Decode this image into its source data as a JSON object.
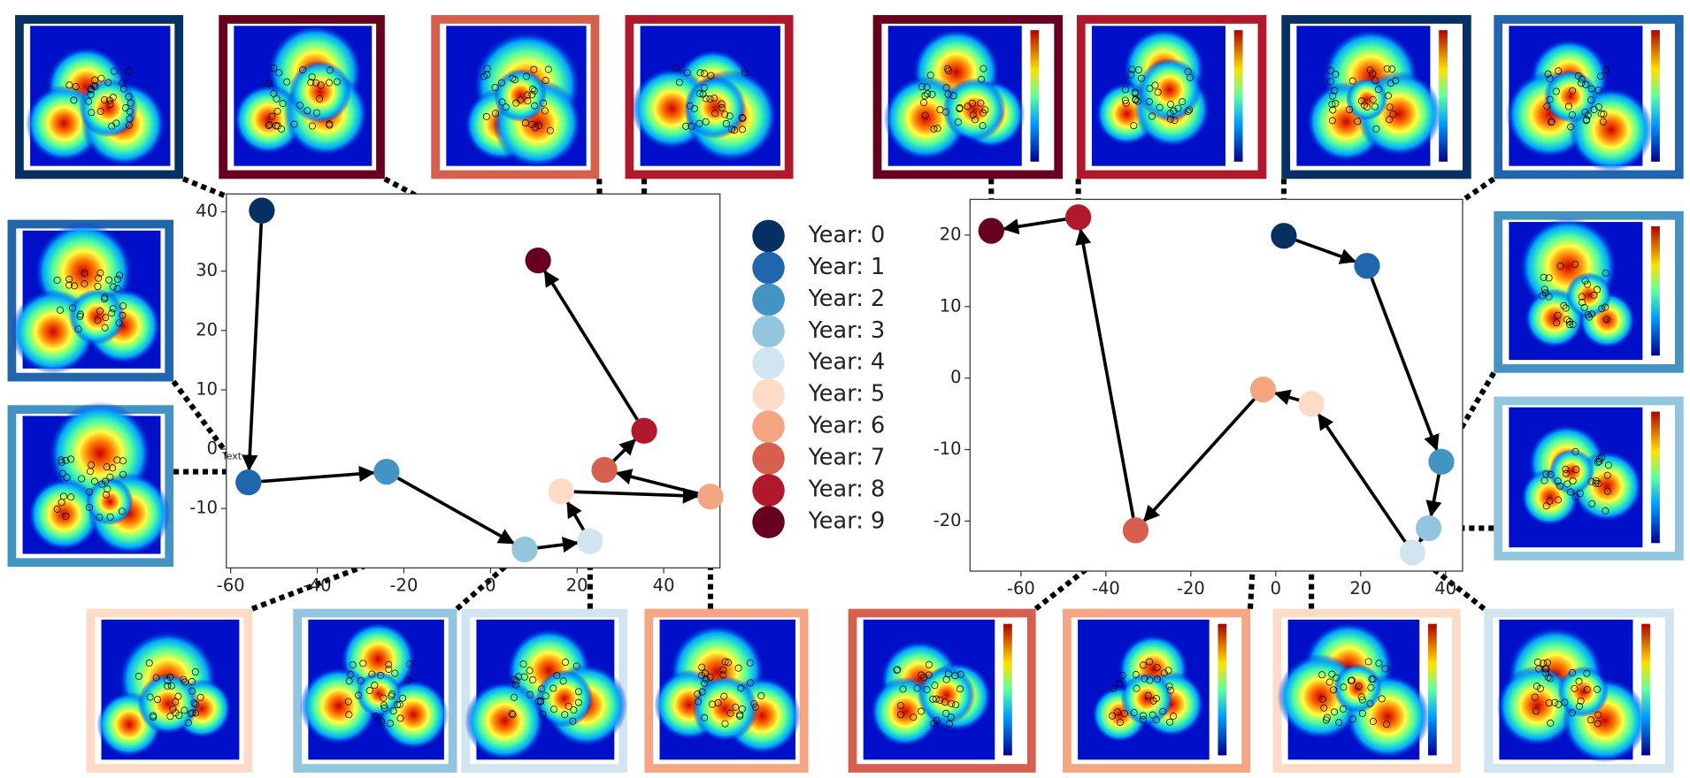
{
  "chart_data": [
    {
      "type": "scatter",
      "categories": [
        "Year: 0",
        "Year: 1",
        "Year: 2",
        "Year: 3",
        "Year: 4",
        "Year: 5",
        "Year: 6",
        "Year: 7",
        "Year: 8",
        "Year: 9"
      ],
      "colors": [
        "#053061",
        "#2166ac",
        "#4393c3",
        "#92c5de",
        "#d1e5f0",
        "#fddbc7",
        "#f4a582",
        "#d6604d",
        "#b2182b",
        "#67001f"
      ],
      "x": [
        -52.8,
        -55.9,
        -24,
        7.9,
        23,
        16.3,
        50.8,
        26.3,
        35.5,
        11
      ],
      "values": [
        40.2,
        -5.6,
        -3.8,
        -16.9,
        -15.5,
        -7.1,
        -8,
        -3.5,
        3.1,
        31.8
      ],
      "xlim": [
        -61,
        53
      ],
      "ylim": [
        -20,
        43
      ],
      "xticks": [
        -60,
        -40,
        -20,
        0,
        20,
        40
      ],
      "yticks": [
        -10,
        0,
        10,
        20,
        30,
        40
      ],
      "annotations": [
        "Text"
      ]
    },
    {
      "type": "scatter",
      "colors": [
        "#053061",
        "#2166ac",
        "#4393c3",
        "#92c5de",
        "#d1e5f0",
        "#fddbc7",
        "#f4a582",
        "#d6604d",
        "#b2182b",
        "#67001f"
      ],
      "x": [
        1.9,
        21.5,
        39,
        36,
        32.2,
        8.4,
        -3,
        -33,
        -46.5,
        -67
      ],
      "values": [
        19.9,
        15.7,
        -11.7,
        -21,
        -24.4,
        -3.6,
        -1.6,
        -21.3,
        22.5,
        20.6
      ],
      "xlim": [
        -72,
        44
      ],
      "ylim": [
        -27,
        25
      ],
      "xticks": [
        -60,
        -40,
        -20,
        0,
        20,
        40
      ],
      "yticks": [
        -20,
        -10,
        0,
        10,
        20
      ]
    }
  ]
}
